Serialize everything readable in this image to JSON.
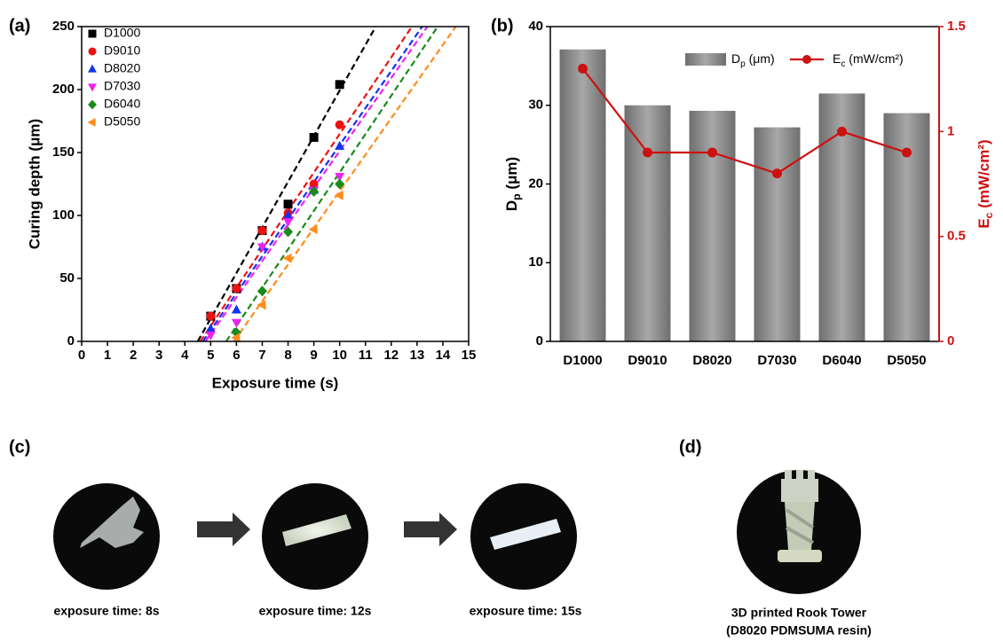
{
  "chart_data": [
    {
      "type": "scatter",
      "panel": "(a)",
      "x_label": "Exposure time (s)",
      "y_label": "Curing depth (μm)",
      "xlim": [
        0,
        15
      ],
      "xticks": [
        0,
        1,
        2,
        3,
        4,
        5,
        6,
        7,
        8,
        9,
        10,
        11,
        12,
        13,
        14,
        15
      ],
      "ylim": [
        0,
        250
      ],
      "yticks": [
        0,
        50,
        100,
        150,
        200,
        250
      ],
      "legend": "upper left",
      "series": [
        {
          "name": "D1000",
          "color": "#000000",
          "marker": "s",
          "x": [
            5,
            6,
            7,
            8,
            9,
            10
          ],
          "values": [
            20,
            42,
            88,
            109,
            162,
            204
          ],
          "fit": {
            "x": [
              4.5,
              11.4
            ],
            "values": [
              0,
              250
            ]
          }
        },
        {
          "name": "D9010",
          "color": "#ee1111",
          "marker": "o",
          "x": [
            5,
            6,
            7,
            8,
            9,
            10
          ],
          "values": [
            20,
            42,
            88,
            102,
            125,
            172
          ],
          "fit": {
            "x": [
              4.6,
              12.8
            ],
            "values": [
              0,
              250
            ]
          }
        },
        {
          "name": "D8020",
          "color": "#1133ee",
          "marker": "^",
          "x": [
            5,
            6,
            7,
            8,
            9,
            10
          ],
          "values": [
            10,
            25,
            75,
            100,
            120,
            155
          ],
          "fit": {
            "x": [
              4.7,
              13.2
            ],
            "values": [
              0,
              250
            ]
          }
        },
        {
          "name": "D7030",
          "color": "#ee22ee",
          "marker": "v",
          "x": [
            5,
            6,
            7,
            8,
            9,
            10
          ],
          "values": [
            5,
            15,
            75,
            95,
            120,
            131
          ],
          "fit": {
            "x": [
              4.8,
              13.4
            ],
            "values": [
              0,
              250
            ]
          }
        },
        {
          "name": "D6040",
          "color": "#1a8a1a",
          "marker": "D",
          "x": [
            6,
            7,
            8,
            9,
            10
          ],
          "values": [
            7,
            40,
            87,
            119,
            125
          ],
          "fit": {
            "x": [
              5.6,
              13.8
            ],
            "values": [
              0,
              250
            ]
          }
        },
        {
          "name": "D5050",
          "color": "#ff8c1a",
          "marker": "<",
          "x": [
            6,
            7,
            8,
            9,
            10
          ],
          "values": [
            3,
            29,
            66,
            89,
            116
          ],
          "fit": {
            "x": [
              5.9,
              14.5
            ],
            "values": [
              0,
              250
            ]
          }
        }
      ]
    },
    {
      "type": "bar",
      "panel": "(b)",
      "y_label": [
        "D",
        "p",
        " (μm)"
      ],
      "y2_label": [
        "E",
        "c",
        " (mW/cm²)"
      ],
      "categories": [
        "D1000",
        "D9010",
        "D8020",
        "D7030",
        "D6040",
        "D5050"
      ],
      "ylim": [
        0,
        40
      ],
      "yticks": [
        0,
        10,
        20,
        30,
        40
      ],
      "y2lim": [
        0,
        1.5
      ],
      "y2ticks": [
        0,
        0.5,
        1,
        1.5
      ],
      "legend": "upper right",
      "series": [
        {
          "name": [
            "D",
            "p",
            " (μm)"
          ],
          "color": "#808080",
          "values": [
            37.1,
            30.0,
            29.3,
            27.2,
            31.5,
            29.0
          ]
        },
        {
          "name": [
            "E",
            "c",
            " (mW/cm²)"
          ],
          "color": "#cc1111",
          "axis": "y2",
          "values": [
            1.3,
            0.9,
            0.9,
            0.8,
            1.0,
            0.9
          ]
        }
      ]
    }
  ],
  "photo_panels": {
    "c": {
      "label": "(c)",
      "captions": [
        "exposure time: 8s",
        "exposure time: 12s",
        "exposure time: 15s"
      ]
    },
    "d": {
      "label": "(d)",
      "captions": [
        "3D printed Rook Tower",
        "(D8020 PDMSUMA resin)"
      ]
    }
  }
}
